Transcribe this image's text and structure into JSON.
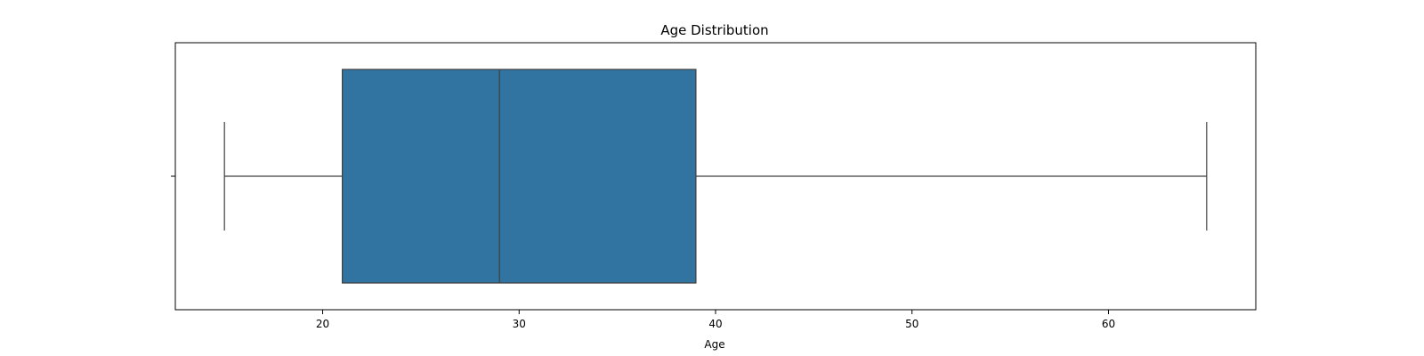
{
  "chart_data": {
    "type": "boxplot",
    "title": "Age Distribution",
    "xlabel": "Age",
    "ylabel": "",
    "orientation": "horizontal",
    "xlim": [
      12.5,
      67.5
    ],
    "xticks": [
      20,
      30,
      40,
      50,
      60
    ],
    "grid": false,
    "legend": "none",
    "box": {
      "whisker_low": 15,
      "q1": 21,
      "median": 29,
      "q3": 39,
      "whisker_high": 65
    },
    "colors": {
      "box_fill": "#3274a1",
      "line": "#3f3f3f",
      "frame": "#000000"
    }
  }
}
